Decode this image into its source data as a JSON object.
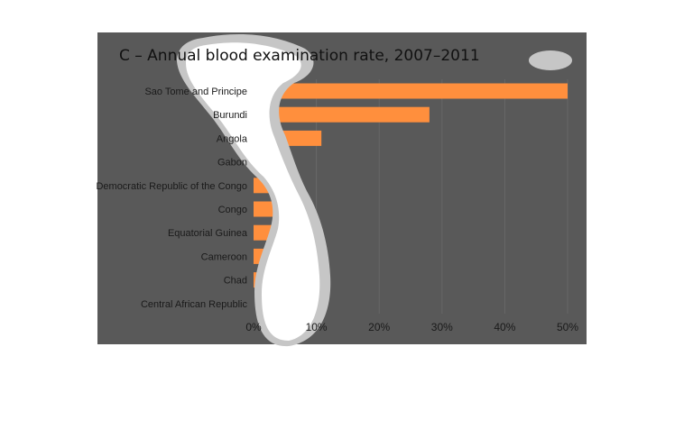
{
  "chart_data": {
    "type": "bar",
    "orientation": "horizontal",
    "title": "C – Annual blood examination rate, 2007–2011",
    "xlabel": "",
    "ylabel": "",
    "categories": [
      "Sao Tome and Principe",
      "Burundi",
      "Angola",
      "Gabon",
      "Democratic Republic of the Congo",
      "Congo",
      "Equatorial Guinea",
      "Cameroon",
      "Chad",
      "Central African Republic"
    ],
    "values": [
      50,
      28,
      10.8,
      4.5,
      4.2,
      3.3,
      3.0,
      2.4,
      1.0,
      0
    ],
    "xlim": [
      0,
      50
    ],
    "xticks": [
      0,
      10,
      20,
      30,
      40,
      50
    ],
    "xtick_labels": [
      "0%",
      "10%",
      "20%",
      "30%",
      "40%",
      "50%"
    ],
    "grid": true,
    "legend": "none",
    "colors": {
      "bar": "#ff8f3d",
      "panel": "#595959",
      "grid": "#676767",
      "overlay_light": "#ffffff",
      "overlay_halo": "#c6c6c6"
    }
  }
}
